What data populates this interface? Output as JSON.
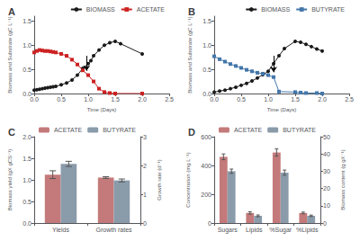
{
  "chart_data": [
    {
      "type": "line",
      "title": "A",
      "xlabel": "Time (Days)",
      "ylabel": "Biomass and Substrate (gC L⁻¹)",
      "xlim": [
        0,
        2.5
      ],
      "xticks": [
        {
          "value": 0,
          "label": "0.0"
        },
        0.5,
        {
          "value": 1,
          "label": "1.0"
        },
        1.5,
        {
          "value": 2,
          "label": "2.0"
        },
        2.5
      ],
      "ylim": [
        0,
        1.6
      ],
      "yticks": [
        {
          "value": 0,
          "label": "0.0"
        },
        0.5,
        {
          "value": 1,
          "label": "1.0"
        },
        1.5
      ],
      "grid": false,
      "legend": "upper right",
      "series": [
        {
          "name": "BIOMASS",
          "color": "#1a1a1a",
          "marker": "circle",
          "x": [
            0.0,
            0.05,
            0.1,
            0.15,
            0.2,
            0.25,
            0.3,
            0.35,
            0.4,
            0.5,
            0.6,
            0.7,
            0.8,
            0.9,
            1.0,
            1.05,
            1.1,
            1.2,
            1.3,
            1.4,
            1.5,
            1.6,
            2.0
          ],
          "values": [
            0.07,
            0.08,
            0.09,
            0.1,
            0.11,
            0.12,
            0.13,
            0.14,
            0.15,
            0.18,
            0.22,
            0.28,
            0.38,
            0.52,
            0.62,
            0.68,
            0.78,
            0.9,
            1.0,
            1.05,
            1.08,
            1.03,
            0.82
          ]
        },
        {
          "name": "ACETATE",
          "color": "#cc2222",
          "marker": "square",
          "x": [
            0.0,
            0.05,
            0.1,
            0.15,
            0.2,
            0.25,
            0.3,
            0.35,
            0.4,
            0.5,
            0.6,
            0.7,
            0.8,
            0.9,
            1.0,
            1.1,
            1.2,
            1.3,
            1.4,
            1.5,
            2.0
          ],
          "values": [
            0.85,
            0.88,
            0.9,
            0.89,
            0.88,
            0.88,
            0.87,
            0.86,
            0.85,
            0.82,
            0.78,
            0.7,
            0.6,
            0.48,
            0.38,
            0.25,
            0.1,
            0.03,
            0.01,
            0.0,
            0.0
          ]
        }
      ],
      "arrow": {
        "x": 0.97,
        "y_start": 0.78,
        "y_end": 0.47
      }
    },
    {
      "type": "line",
      "title": "B",
      "xlabel": "Time (Days)",
      "ylabel": "Biomass and Substrate (gC L⁻¹)",
      "xlim": [
        0,
        2.5
      ],
      "xticks": [
        {
          "value": 0,
          "label": "0.0"
        },
        0.5,
        {
          "value": 1,
          "label": "1.0"
        },
        1.5,
        {
          "value": 2,
          "label": "2.0"
        },
        2.5
      ],
      "ylim": [
        0,
        1.6
      ],
      "yticks": [
        {
          "value": 0,
          "label": "0.0"
        },
        0.5,
        {
          "value": 1,
          "label": "1.0"
        },
        1.5
      ],
      "grid": false,
      "legend": "upper right",
      "series": [
        {
          "name": "BIOMASS",
          "color": "#1a1a1a",
          "marker": "circle",
          "x": [
            0.0,
            0.1,
            0.2,
            0.3,
            0.4,
            0.5,
            0.6,
            0.7,
            0.8,
            0.9,
            1.0,
            1.1,
            1.2,
            1.3,
            1.5,
            1.6,
            1.7,
            1.8,
            1.9,
            2.0
          ],
          "values": [
            0.03,
            0.05,
            0.07,
            0.1,
            0.13,
            0.17,
            0.21,
            0.26,
            0.32,
            0.39,
            0.46,
            0.62,
            0.78,
            0.93,
            1.08,
            1.06,
            1.02,
            0.97,
            0.92,
            0.88
          ]
        },
        {
          "name": "BUTYRATE",
          "color": "#4477aa",
          "marker": "square",
          "x": [
            0.0,
            0.1,
            0.2,
            0.3,
            0.4,
            0.5,
            0.6,
            0.7,
            0.8,
            0.9,
            1.0,
            1.1,
            1.2,
            1.5,
            1.6,
            1.7,
            1.9,
            2.0
          ],
          "values": [
            0.77,
            0.71,
            0.66,
            0.61,
            0.57,
            0.53,
            0.49,
            0.46,
            0.43,
            0.41,
            0.38,
            0.34,
            0.04,
            0.03,
            0.02,
            0.01,
            0.01,
            0.0
          ]
        }
      ],
      "arrow": {
        "x": 1.1,
        "y_start": 0.78,
        "y_end": 0.44
      }
    },
    {
      "type": "bar",
      "title": "C",
      "ylabel": "Biomass yield (gX gCS⁻¹)",
      "y2label": "Growth rate (d⁻¹)",
      "categories": [
        "Yields",
        "Growth rates"
      ],
      "ylim": [
        0,
        2.0
      ],
      "yticks": [
        {
          "value": 0,
          "label": "0.0"
        },
        0.5,
        {
          "value": 1,
          "label": "1.0"
        },
        1.5,
        {
          "value": 2,
          "label": "2.0"
        }
      ],
      "y2lim": [
        0,
        3
      ],
      "y2ticks": [
        0,
        1,
        2,
        3
      ],
      "grid": false,
      "legend": "upper right",
      "series": [
        {
          "name": "ACETATE",
          "color": "#c47a7a",
          "values": [
            1.12,
            null
          ],
          "errors": [
            0.09,
            null
          ]
        },
        {
          "name": "BUTYRATE",
          "color": "#8a9baa",
          "values": [
            1.37,
            null
          ],
          "errors": [
            0.06,
            null
          ]
        },
        {
          "name": "ACETATE",
          "color": "#c47a7a",
          "axis": "y2",
          "values": [
            null,
            1.58
          ],
          "errors": [
            null,
            0.03
          ]
        },
        {
          "name": "BUTYRATE",
          "color": "#8a9baa",
          "axis": "y2",
          "values": [
            null,
            1.48
          ],
          "errors": [
            null,
            0.05
          ]
        }
      ]
    },
    {
      "type": "bar",
      "title": "D",
      "ylabel": "Concentration (mg L⁻¹)",
      "y2label": "Biomass content (g gX⁻¹)",
      "categories": [
        "Sugars",
        "Lipids",
        "%Sugar",
        "%Lipids"
      ],
      "ylim": [
        0,
        600
      ],
      "yticks": [
        0,
        200,
        400,
        600
      ],
      "y2lim": [
        0,
        50
      ],
      "y2ticks": [
        0,
        10,
        20,
        30,
        40,
        50
      ],
      "grid": false,
      "legend": "upper right",
      "series": [
        {
          "name": "ACETATE",
          "color": "#c47a7a",
          "values": [
            460,
            70,
            490,
            70
          ],
          "errors": [
            20,
            8,
            25,
            6
          ]
        },
        {
          "name": "BUTYRATE",
          "color": "#8a9baa",
          "values": [
            360,
            50,
            350,
            50
          ],
          "errors": [
            15,
            6,
            18,
            5
          ]
        }
      ]
    }
  ]
}
